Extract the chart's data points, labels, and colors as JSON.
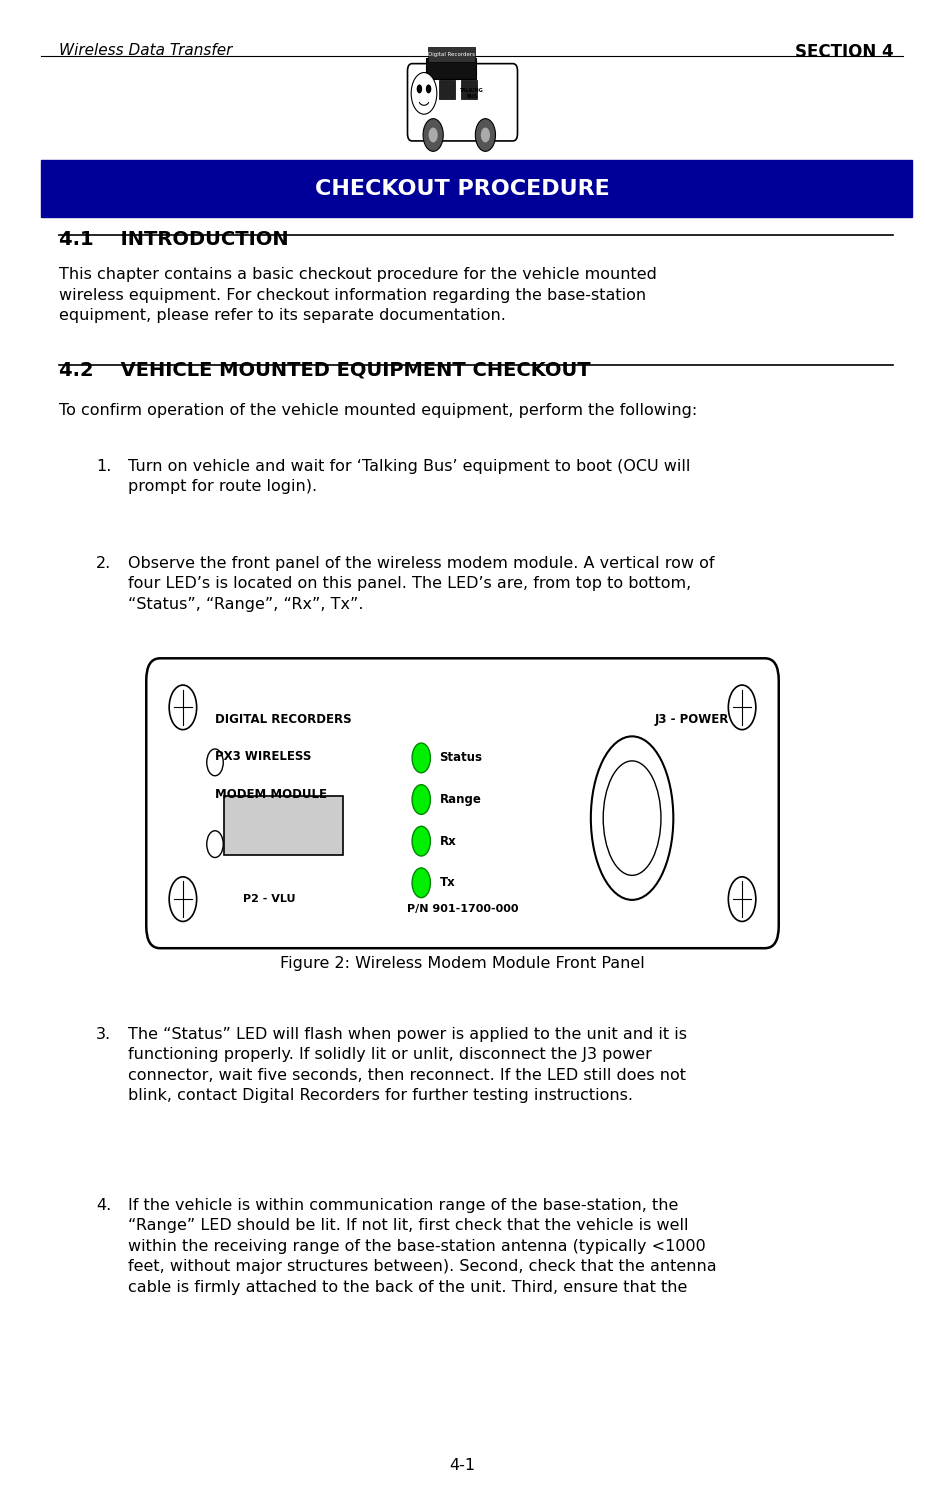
{
  "page_width": 9.25,
  "page_height": 14.95,
  "bg_color": "#ffffff",
  "header_left": "Wireless Data Transfer",
  "header_right": "SECTION 4",
  "section_banner_text": "CHECKOUT PROCEDURE",
  "section_banner_bg": "#000099",
  "section_banner_fg": "#ffffff",
  "section_number": "4-1",
  "sec41_title": "4.1    INTRODUCTION",
  "sec41_underline": true,
  "sec41_body": "This chapter contains a basic checkout procedure for the vehicle mounted\nwireless equipment. For checkout information regarding the base-station\nequipment, please refer to its separate documentation.",
  "sec42_title": "4.2    VEHICLE MOUNTED EQUIPMENT CHECKOUT",
  "sec42_underline": true,
  "sec42_intro": "To confirm operation of the vehicle mounted equipment, perform the following:",
  "list_items": [
    "Turn on vehicle and wait for ‘Talking Bus’ equipment to boot (OCU will\nprompt for route login).",
    "Observe the front panel of the wireless modem module. A vertical row of\nfour LED’s is located on this panel. The LED’s are, from top to bottom,\n“Status”, “Range”, “Rx”, Tx”."
  ],
  "figure_caption": "Figure 2: Wireless Modem Module Front Panel",
  "item3_text": "The “Status” LED will flash when power is applied to the unit and it is\nfunctioning properly. If solidly lit or unlit, disconnect the J3 power\nconnector, wait five seconds, then reconnect. If the LED still does not\nblink, contact Digital Recorders for further testing instructions.",
  "item4_text": "If the vehicle is within communication range of the base-station, the\n“Range” LED should be lit. If not lit, first check that the vehicle is well\nwithin the receiving range of the base-station antenna (typically <1000\nfeet, without major structures between). Second, check that the antenna\ncable is firmly attached to the back of the unit. Third, ensure that the",
  "led_color": "#00ee00",
  "led_labels": [
    "Status",
    "Range",
    "Rx",
    "Tx"
  ],
  "modem_title_line1": "DIGITAL RECORDERS",
  "modem_title_line2": "PX3 WIRELESS",
  "modem_title_line3": "MODEM MODULE",
  "modem_j3": "J3 - POWER",
  "modem_p2": "P2 - VLU",
  "modem_pn": "P/N 901-1700-000",
  "text_color": "#000000",
  "font_size_body": 11.5,
  "font_size_header": 11,
  "font_size_section_title": 13,
  "font_size_banner": 16
}
